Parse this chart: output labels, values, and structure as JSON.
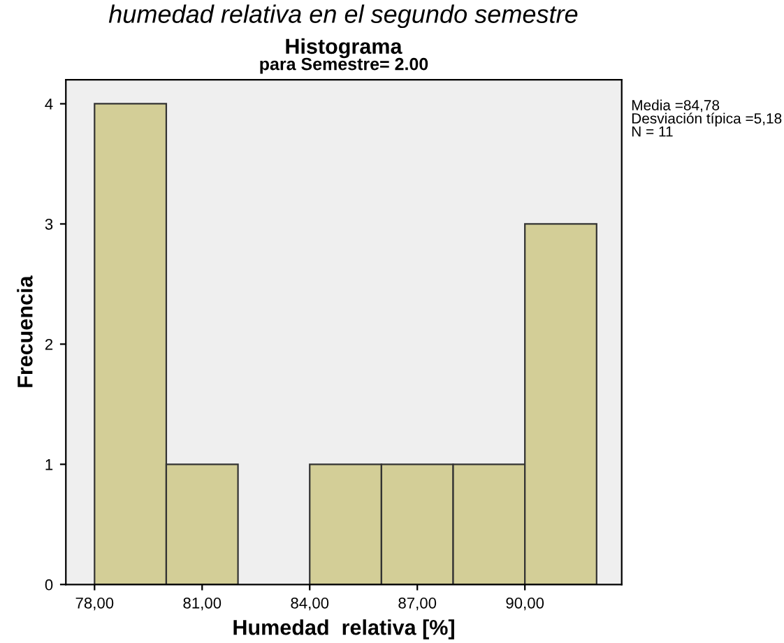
{
  "chart_data": {
    "type": "histogram",
    "title": "Histograma",
    "subtitle": "para Semestre= 2.00",
    "xlabel": "Humedad  relativa [%]",
    "ylabel": "Frecuencia",
    "bins": [
      78,
      80,
      82,
      84,
      86,
      88,
      90,
      92
    ],
    "values": [
      4,
      1,
      0,
      1,
      1,
      1,
      3
    ],
    "color": "#d3ce97",
    "xlim": [
      77.2,
      92.7
    ],
    "xticks": [
      {
        "value": 78,
        "label": "78,00"
      },
      {
        "value": 81,
        "label": "81,00"
      },
      {
        "value": 84,
        "label": "84,00"
      },
      {
        "value": 87,
        "label": "87,00"
      },
      {
        "value": 90,
        "label": "90,00"
      }
    ],
    "ylim": [
      0,
      4.2
    ],
    "yticks": [
      0,
      1,
      2,
      3,
      4
    ],
    "grid": false,
    "annotations": [
      "humedad relativa en el segundo semestre",
      "Media =84,78\nDesviación típica =5,18\nN = 11"
    ]
  }
}
